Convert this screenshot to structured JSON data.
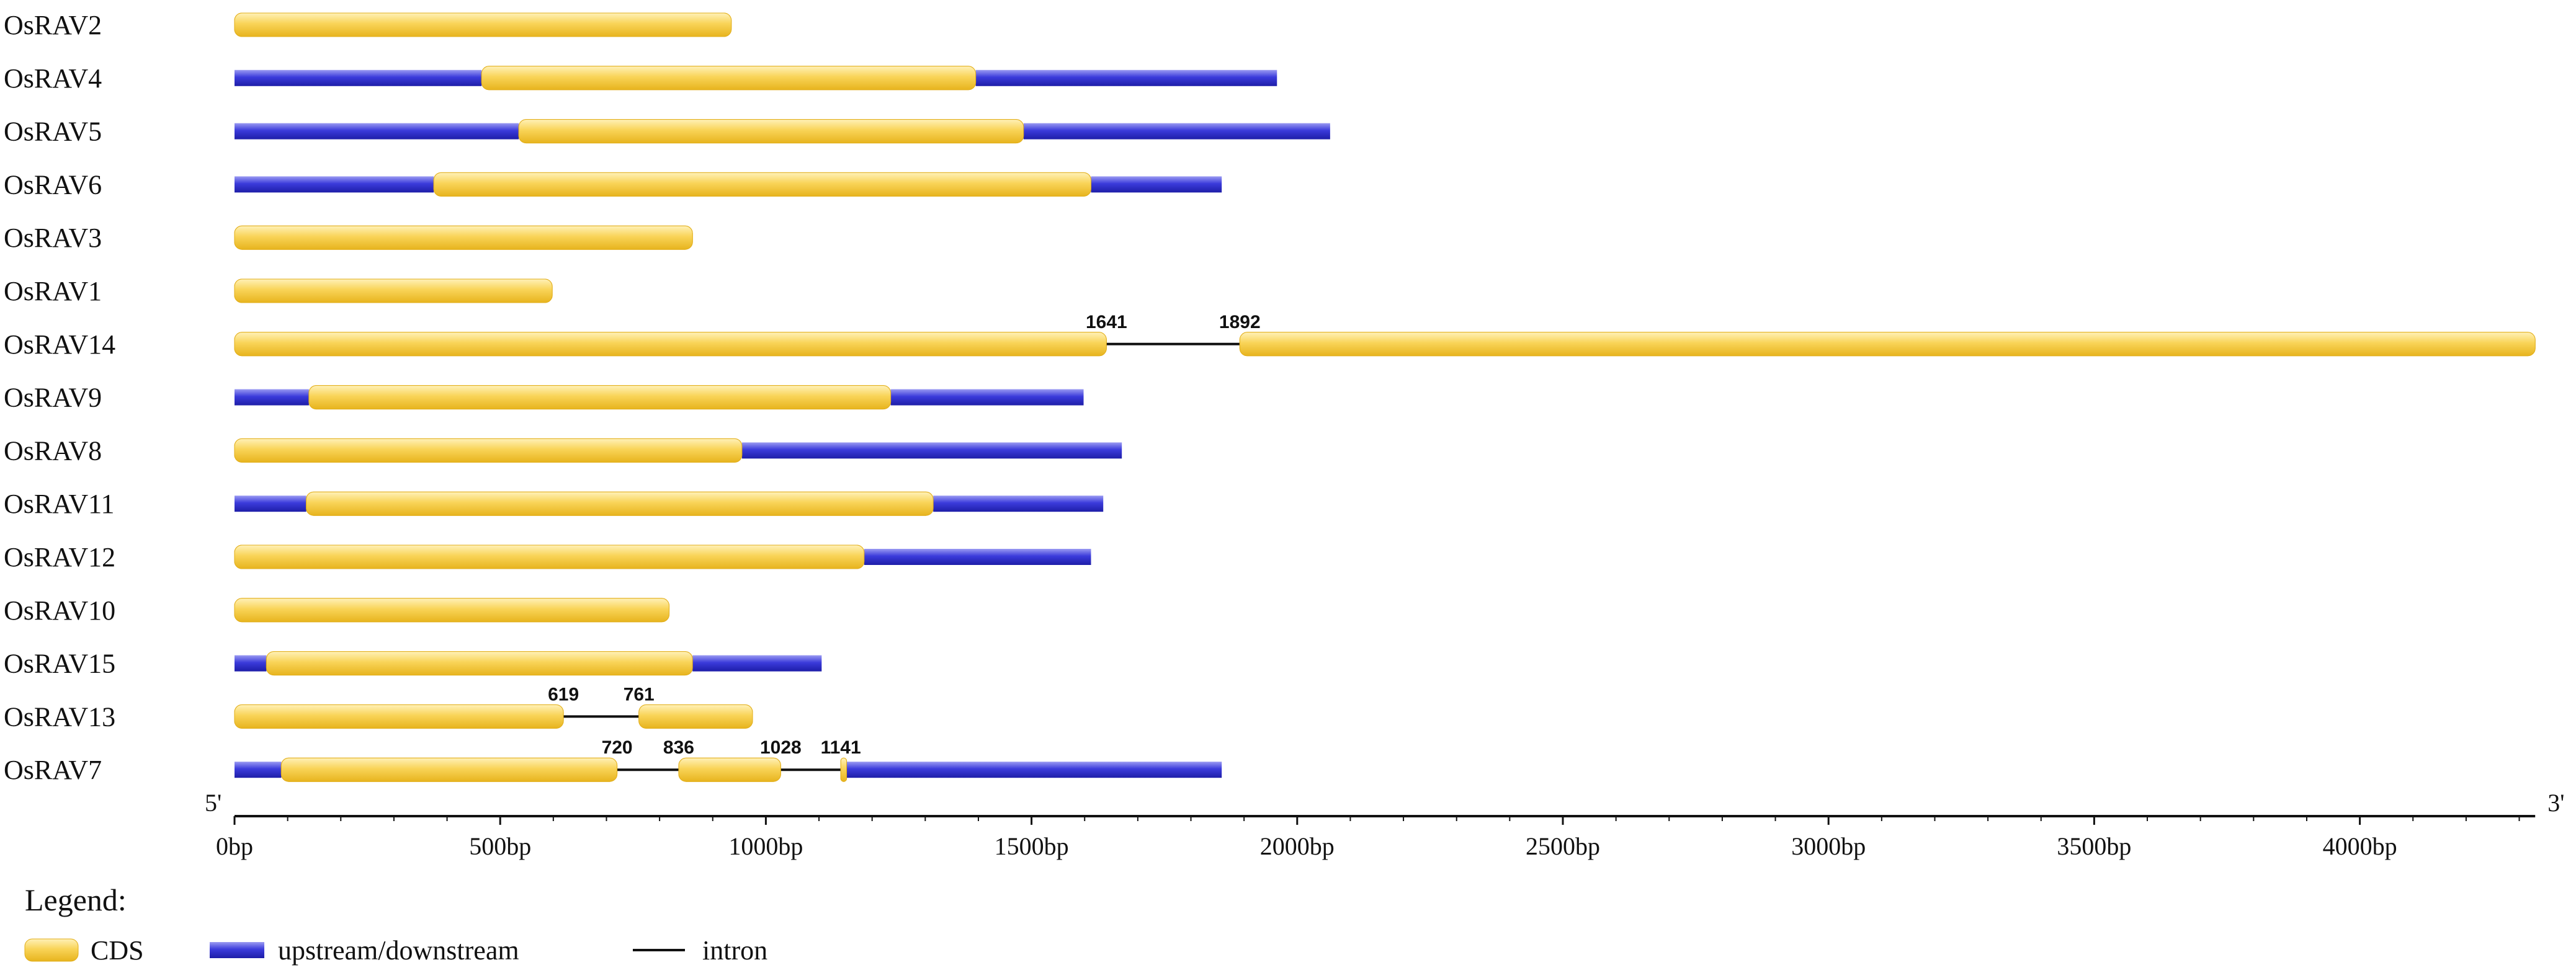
{
  "colors": {
    "cds": "#F7C932",
    "utr": "#3535D6",
    "intron": "#111111"
  },
  "axis": {
    "ticks": [
      {
        "value": 0,
        "label": "0bp"
      },
      {
        "value": 500,
        "label": "500bp"
      },
      {
        "value": 1000,
        "label": "1000bp"
      },
      {
        "value": 1500,
        "label": "1500bp"
      },
      {
        "value": 2000,
        "label": "2000bp"
      },
      {
        "value": 2500,
        "label": "2500bp"
      },
      {
        "value": 3000,
        "label": "3000bp"
      },
      {
        "value": 3500,
        "label": "3500bp"
      },
      {
        "value": 4000,
        "label": "4000bp"
      }
    ],
    "five_prime": "5'",
    "three_prime": "3'",
    "max": 4330
  },
  "genes": [
    {
      "name": "OsRAV2",
      "segments": [
        {
          "type": "cds",
          "start": 0,
          "end": 935
        }
      ]
    },
    {
      "name": "OsRAV4",
      "segments": [
        {
          "type": "utr",
          "start": 0,
          "end": 465
        },
        {
          "type": "cds",
          "start": 465,
          "end": 1395
        },
        {
          "type": "utr",
          "start": 1395,
          "end": 1962
        }
      ]
    },
    {
      "name": "OsRAV5",
      "segments": [
        {
          "type": "utr",
          "start": 0,
          "end": 535
        },
        {
          "type": "cds",
          "start": 535,
          "end": 1485
        },
        {
          "type": "utr",
          "start": 1485,
          "end": 2062
        }
      ]
    },
    {
      "name": "OsRAV6",
      "segments": [
        {
          "type": "utr",
          "start": 0,
          "end": 375
        },
        {
          "type": "cds",
          "start": 375,
          "end": 1612
        },
        {
          "type": "utr",
          "start": 1612,
          "end": 1858
        }
      ]
    },
    {
      "name": "OsRAV3",
      "segments": [
        {
          "type": "cds",
          "start": 0,
          "end": 862
        }
      ]
    },
    {
      "name": "OsRAV1",
      "segments": [
        {
          "type": "cds",
          "start": 0,
          "end": 598
        }
      ]
    },
    {
      "name": "OsRAV14",
      "segments": [
        {
          "type": "cds",
          "start": 0,
          "end": 1641
        },
        {
          "type": "intron",
          "start": 1641,
          "end": 1892
        },
        {
          "type": "cds",
          "start": 1892,
          "end": 4330
        }
      ],
      "labels": [
        {
          "value": 1641,
          "text": "1641"
        },
        {
          "value": 1892,
          "text": "1892"
        }
      ]
    },
    {
      "name": "OsRAV9",
      "segments": [
        {
          "type": "utr",
          "start": 0,
          "end": 140
        },
        {
          "type": "cds",
          "start": 140,
          "end": 1235
        },
        {
          "type": "utr",
          "start": 1235,
          "end": 1598
        }
      ]
    },
    {
      "name": "OsRAV8",
      "segments": [
        {
          "type": "cds",
          "start": 0,
          "end": 955
        },
        {
          "type": "utr",
          "start": 955,
          "end": 1670
        }
      ]
    },
    {
      "name": "OsRAV11",
      "segments": [
        {
          "type": "utr",
          "start": 0,
          "end": 135
        },
        {
          "type": "cds",
          "start": 135,
          "end": 1315
        },
        {
          "type": "utr",
          "start": 1315,
          "end": 1635
        }
      ]
    },
    {
      "name": "OsRAV12",
      "segments": [
        {
          "type": "cds",
          "start": 0,
          "end": 1185
        },
        {
          "type": "utr",
          "start": 1185,
          "end": 1612
        }
      ]
    },
    {
      "name": "OsRAV10",
      "segments": [
        {
          "type": "cds",
          "start": 0,
          "end": 818
        }
      ]
    },
    {
      "name": "OsRAV15",
      "segments": [
        {
          "type": "utr",
          "start": 0,
          "end": 60
        },
        {
          "type": "cds",
          "start": 60,
          "end": 862
        },
        {
          "type": "utr",
          "start": 862,
          "end": 1105
        }
      ]
    },
    {
      "name": "OsRAV13",
      "segments": [
        {
          "type": "cds",
          "start": 0,
          "end": 619
        },
        {
          "type": "intron",
          "start": 619,
          "end": 761
        },
        {
          "type": "cds",
          "start": 761,
          "end": 975
        }
      ],
      "labels": [
        {
          "value": 619,
          "text": "619"
        },
        {
          "value": 761,
          "text": "761"
        }
      ]
    },
    {
      "name": "OsRAV7",
      "segments": [
        {
          "type": "utr",
          "start": 0,
          "end": 88
        },
        {
          "type": "cds",
          "start": 88,
          "end": 720
        },
        {
          "type": "intron",
          "start": 720,
          "end": 836
        },
        {
          "type": "cds",
          "start": 836,
          "end": 1028
        },
        {
          "type": "intron",
          "start": 1028,
          "end": 1141
        },
        {
          "type": "cds",
          "start": 1141,
          "end": 1152
        },
        {
          "type": "utr",
          "start": 1152,
          "end": 1858
        }
      ],
      "labels": [
        {
          "value": 720,
          "text": "720"
        },
        {
          "value": 836,
          "text": "836"
        },
        {
          "value": 1028,
          "text": "1028"
        },
        {
          "value": 1141,
          "text": "1141"
        }
      ]
    }
  ],
  "legend": {
    "title": "Legend:",
    "items": [
      {
        "key": "cds",
        "label": "CDS"
      },
      {
        "key": "utr",
        "label": "upstream/downstream"
      },
      {
        "key": "intron",
        "label": "intron"
      }
    ]
  }
}
